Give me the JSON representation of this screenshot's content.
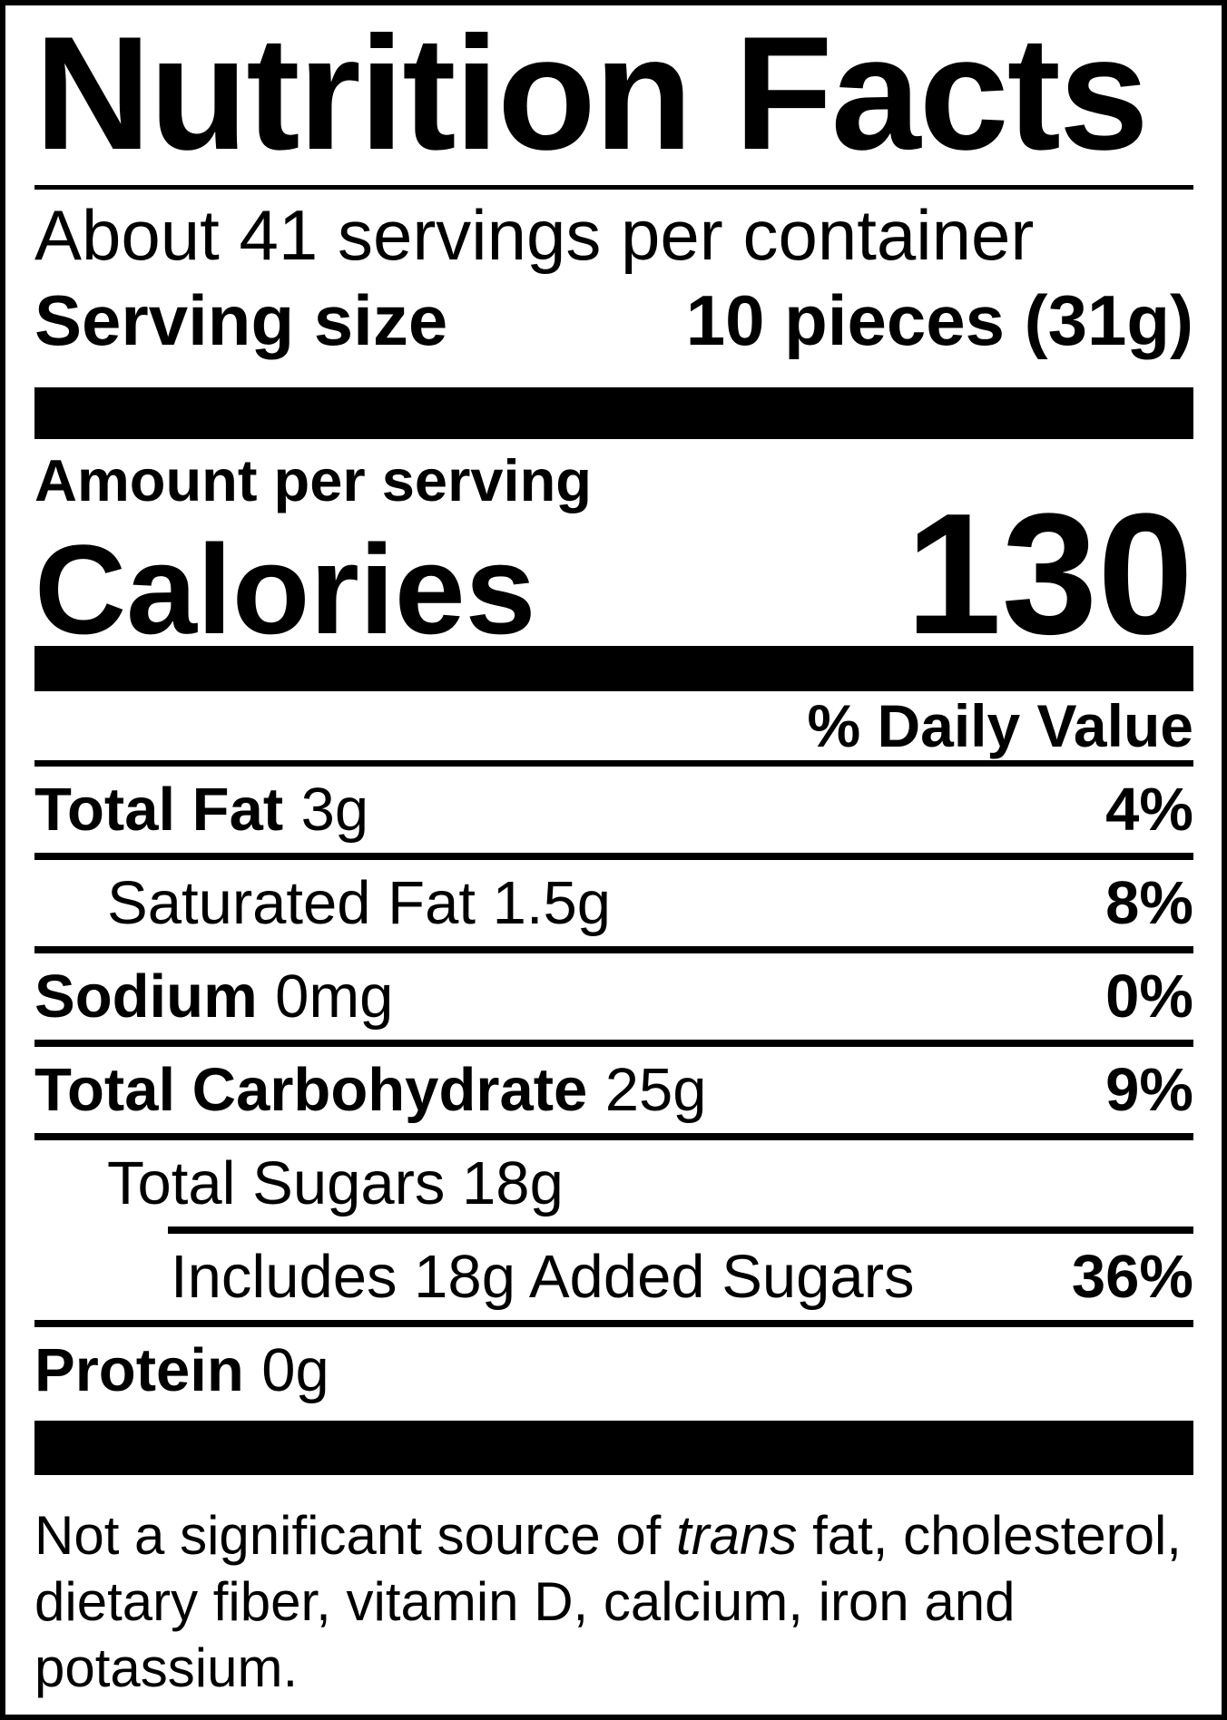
{
  "title": "Nutrition Facts",
  "servings_per_container": "About 41 servings per container",
  "serving_size": {
    "label": "Serving size",
    "value": "10 pieces (31g)"
  },
  "amount_per_serving": "Amount per serving",
  "calories": {
    "label": "Calories",
    "value": "130"
  },
  "daily_value_header": "% Daily Value",
  "nutrients": [
    {
      "bold": "Total Fat",
      "rest": "3g",
      "dv": "4%"
    },
    {
      "bold": "",
      "rest": "Saturated Fat 1.5g",
      "dv": "8%"
    },
    {
      "bold": "Sodium",
      "rest": "0mg",
      "dv": "0%"
    },
    {
      "bold": "Total Carbohydrate",
      "rest": "25g",
      "dv": "9%"
    },
    {
      "bold": "",
      "rest": "Total Sugars 18g",
      "dv": ""
    },
    {
      "bold": "",
      "rest": "Includes 18g Added Sugars",
      "dv": "36%"
    },
    {
      "bold": "Protein",
      "rest": "0g",
      "dv": ""
    }
  ],
  "footnote": {
    "pre": "Not a significant source of ",
    "italic": "trans",
    "post": " fat, cholesterol, dietary fiber, vitamin D, calcium, iron and potassium."
  },
  "colors": {
    "ink": "#000000",
    "paper": "#ffffff"
  }
}
